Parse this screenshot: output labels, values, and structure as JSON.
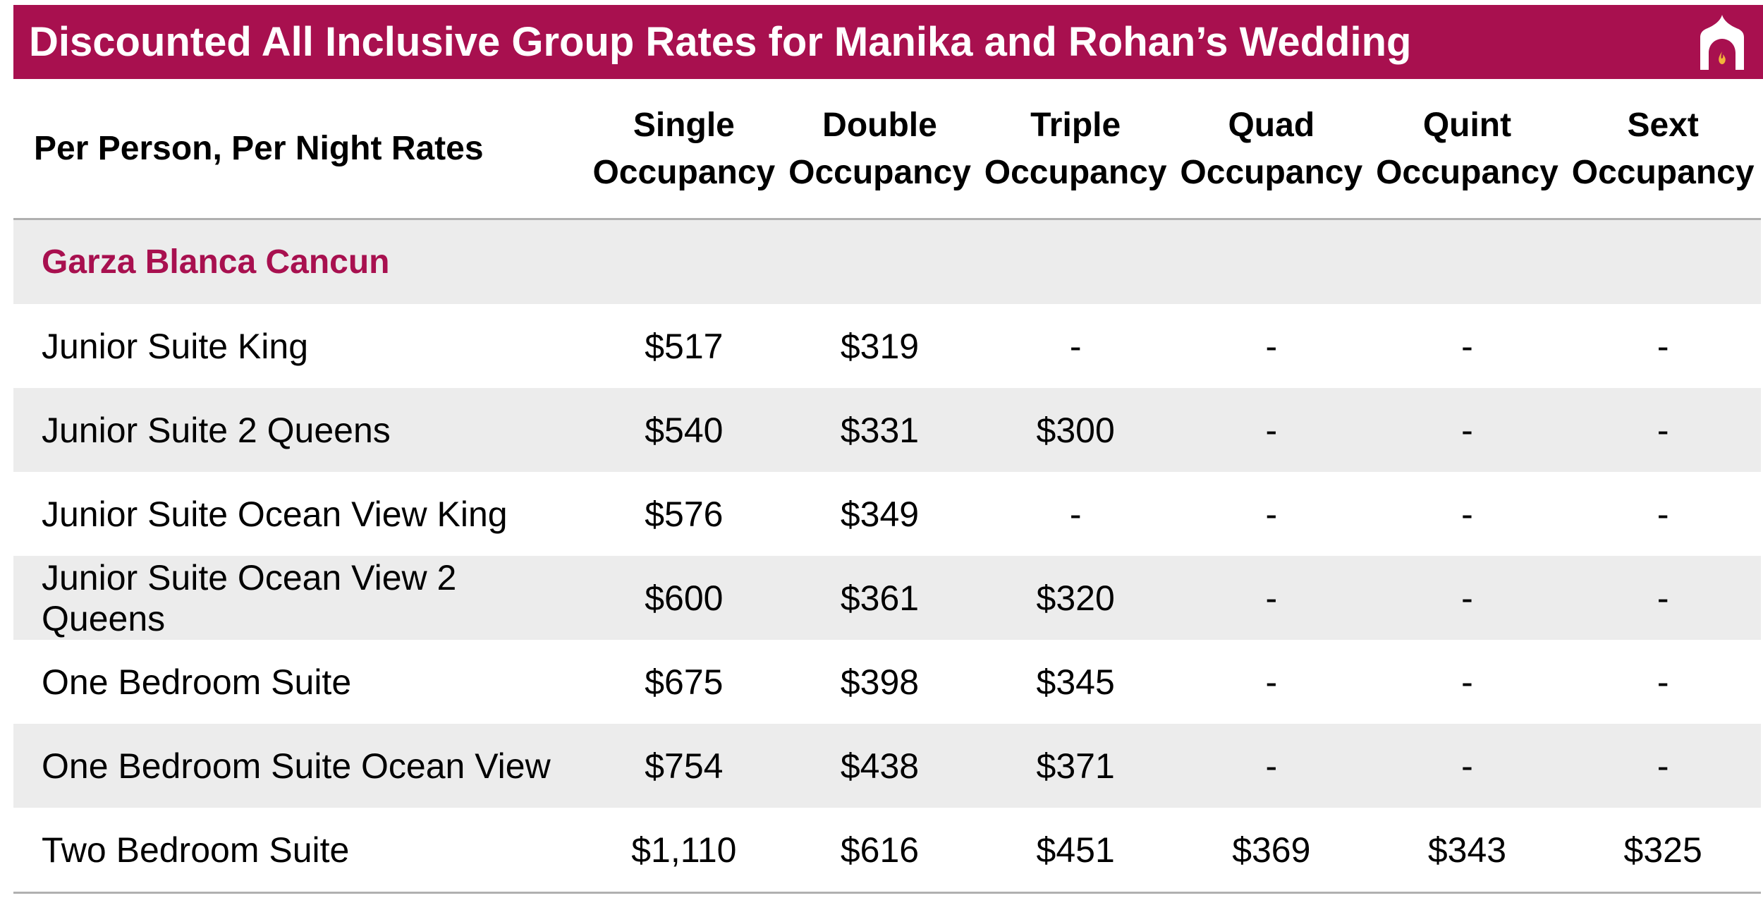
{
  "header": {
    "title": "Discounted All Inclusive Group Rates for Manika and Rohan’s Wedding",
    "logo_icon": "palace-dome-flame-icon",
    "accent_color": "#a8104f"
  },
  "table": {
    "row_header": "Per Person, Per Night Rates",
    "columns": [
      {
        "line1": "Single",
        "line2": "Occupancy"
      },
      {
        "line1": "Double",
        "line2": "Occupancy"
      },
      {
        "line1": "Triple",
        "line2": "Occupancy"
      },
      {
        "line1": "Quad",
        "line2": "Occupancy"
      },
      {
        "line1": "Quint",
        "line2": "Occupancy"
      },
      {
        "line1": "Sext",
        "line2": "Occupancy"
      }
    ],
    "hotel_name": "Garza Blanca Cancun",
    "rows": [
      {
        "name": "Junior Suite King",
        "values": [
          "$517",
          "$319",
          "-",
          "-",
          "-",
          "-"
        ]
      },
      {
        "name": "Junior Suite 2 Queens",
        "values": [
          "$540",
          "$331",
          "$300",
          "-",
          "-",
          "-"
        ]
      },
      {
        "name": "Junior Suite Ocean View King",
        "values": [
          "$576",
          "$349",
          "-",
          "-",
          "-",
          "-"
        ]
      },
      {
        "name": "Junior Suite Ocean View 2 Queens",
        "values": [
          "$600",
          "$361",
          "$320",
          "-",
          "-",
          "-"
        ]
      },
      {
        "name": "One Bedroom Suite",
        "values": [
          "$675",
          "$398",
          "$345",
          "-",
          "-",
          "-"
        ]
      },
      {
        "name": "One Bedroom Suite Ocean View",
        "values": [
          "$754",
          "$438",
          "$371",
          "-",
          "-",
          "-"
        ]
      },
      {
        "name": "Two Bedroom Suite",
        "values": [
          "$1,110",
          "$616",
          "$451",
          "$369",
          "$343",
          "$325"
        ]
      }
    ]
  }
}
